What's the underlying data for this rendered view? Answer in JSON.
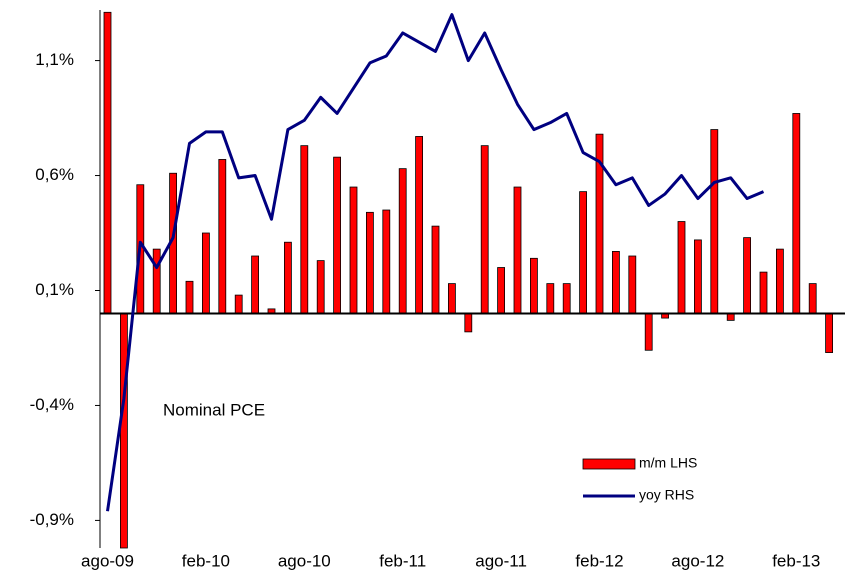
{
  "chart_data": {
    "type": "bar_line",
    "annotation": "Nominal PCE",
    "categories": [
      "ago-09",
      null,
      null,
      null,
      null,
      null,
      "feb-10",
      null,
      null,
      null,
      null,
      null,
      "ago-10",
      null,
      null,
      null,
      null,
      null,
      "feb-11",
      null,
      null,
      null,
      null,
      null,
      "ago-11",
      null,
      null,
      null,
      null,
      null,
      "feb-12",
      null,
      null,
      null,
      null,
      null,
      "ago-12",
      null,
      null,
      null,
      null,
      null,
      "feb-13",
      null,
      null
    ],
    "series": [
      {
        "name": "m/m LHS",
        "type": "bar",
        "color": "#ff0000",
        "values": [
          1.31,
          -1.02,
          0.56,
          0.28,
          0.61,
          0.14,
          0.35,
          0.67,
          0.08,
          0.25,
          0.02,
          0.31,
          0.73,
          0.23,
          0.68,
          0.55,
          0.44,
          0.45,
          0.63,
          0.77,
          0.38,
          0.13,
          -0.08,
          0.73,
          0.2,
          0.55,
          0.24,
          0.13,
          0.13,
          0.53,
          0.78,
          0.27,
          0.25,
          -0.16,
          -0.02,
          0.4,
          0.32,
          0.8,
          -0.03,
          0.33,
          0.18,
          0.28,
          0.87,
          0.13,
          -0.17
        ]
      },
      {
        "name": "yoy RHS",
        "type": "line",
        "color": "#000080",
        "values": [
          -0.86,
          -0.37,
          0.31,
          0.2,
          0.33,
          0.74,
          0.79,
          0.79,
          0.59,
          0.6,
          0.41,
          0.8,
          0.84,
          0.94,
          0.87,
          0.98,
          1.09,
          1.12,
          1.22,
          1.18,
          1.14,
          1.3,
          1.1,
          1.22,
          1.06,
          0.91,
          0.8,
          0.83,
          0.87,
          0.7,
          0.66,
          0.56,
          0.59,
          0.47,
          0.52,
          0.6,
          0.5,
          0.57,
          0.59,
          0.5,
          0.53,
          null,
          null,
          null,
          null
        ]
      }
    ],
    "ylim": [
      -1.02,
      1.32
    ],
    "yticks": [
      {
        "value": -0.9,
        "label": "-0,9%"
      },
      {
        "value": -0.4,
        "label": "-0,4%"
      },
      {
        "value": 0.1,
        "label": "0,1%"
      },
      {
        "value": 0.6,
        "label": "0,6%"
      },
      {
        "value": 1.1,
        "label": "1,1%"
      }
    ],
    "grid": false
  }
}
